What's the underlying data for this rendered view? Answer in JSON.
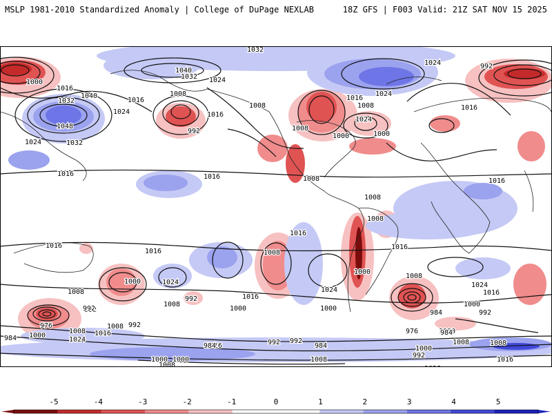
{
  "header": {
    "left": "MSLP 1981-2010 Standardized Anomaly | College of DuPage NEXLAB",
    "right": "18Z GFS | F003 Valid: 21Z SAT NOV 15 2025"
  },
  "colors": {
    "neg5": "#7a0c0c",
    "neg4": "#c42a2a",
    "neg3": "#e05353",
    "neg2": "#f08c8c",
    "neg1": "#f7c1c1",
    "zero": "#ffffff",
    "pos1": "#c5c9f5",
    "pos2": "#9ba2ee",
    "pos3": "#6e75e6",
    "pos4": "#4148da",
    "pos5": "#1a1fbd",
    "contour": "#111111",
    "coast": "#222222"
  },
  "isobar_labels": [
    {
      "id": "l1",
      "text": "1032"
    },
    {
      "id": "l2",
      "text": "1024"
    },
    {
      "id": "l3",
      "text": "992"
    },
    {
      "id": "l4",
      "text": "1000"
    },
    {
      "id": "l5",
      "text": "1016"
    },
    {
      "id": "l6",
      "text": "1032"
    },
    {
      "id": "l7",
      "text": "1040"
    },
    {
      "id": "l8",
      "text": "1048"
    },
    {
      "id": "l9",
      "text": "1024"
    },
    {
      "id": "l10",
      "text": "1032"
    },
    {
      "id": "l11",
      "text": "1024"
    },
    {
      "id": "l12",
      "text": "1016"
    },
    {
      "id": "l13",
      "text": "1016"
    },
    {
      "id": "l14",
      "text": "1040"
    },
    {
      "id": "l15",
      "text": "1032"
    },
    {
      "id": "l16",
      "text": "1008"
    },
    {
      "id": "l17",
      "text": "992"
    },
    {
      "id": "l18",
      "text": "1024"
    },
    {
      "id": "l19",
      "text": "1016"
    },
    {
      "id": "l20",
      "text": "1008"
    },
    {
      "id": "l21",
      "text": "1016"
    },
    {
      "id": "l22",
      "text": "1008"
    },
    {
      "id": "l23",
      "text": "1016"
    },
    {
      "id": "l24",
      "text": "1008"
    },
    {
      "id": "l25",
      "text": "1000"
    },
    {
      "id": "l26",
      "text": "1024"
    },
    {
      "id": "l27",
      "text": "1008"
    },
    {
      "id": "l28",
      "text": "1000"
    },
    {
      "id": "l29",
      "text": "1024"
    },
    {
      "id": "l30",
      "text": "1016"
    },
    {
      "id": "l31",
      "text": "1016"
    },
    {
      "id": "l32",
      "text": "1008"
    },
    {
      "id": "l33",
      "text": "1008"
    },
    {
      "id": "l34",
      "text": "1016"
    },
    {
      "id": "l35",
      "text": "1016"
    },
    {
      "id": "l36",
      "text": "1016"
    },
    {
      "id": "l37",
      "text": "1024"
    },
    {
      "id": "l38",
      "text": "1008"
    },
    {
      "id": "l39",
      "text": "1000"
    },
    {
      "id": "l40",
      "text": "1016"
    },
    {
      "id": "l41",
      "text": "1000"
    },
    {
      "id": "l42",
      "text": "1024"
    },
    {
      "id": "l43",
      "text": "1008"
    },
    {
      "id": "l44",
      "text": "992"
    },
    {
      "id": "l45",
      "text": "1016"
    },
    {
      "id": "l46",
      "text": "1000"
    },
    {
      "id": "l47",
      "text": "1008"
    },
    {
      "id": "l48",
      "text": "992"
    },
    {
      "id": "l49",
      "text": "1000"
    },
    {
      "id": "l50",
      "text": "1024"
    },
    {
      "id": "l51",
      "text": "1016"
    },
    {
      "id": "l52",
      "text": "1008"
    },
    {
      "id": "l53",
      "text": "1000"
    },
    {
      "id": "l54",
      "text": "992"
    },
    {
      "id": "l55",
      "text": "984"
    },
    {
      "id": "l56",
      "text": "976"
    },
    {
      "id": "l57",
      "text": "992"
    },
    {
      "id": "l58",
      "text": "1000"
    },
    {
      "id": "l59",
      "text": "984"
    },
    {
      "id": "l60",
      "text": "1008"
    },
    {
      "id": "l61",
      "text": "1024"
    },
    {
      "id": "l62",
      "text": "976"
    },
    {
      "id": "l63",
      "text": "1000"
    },
    {
      "id": "l64",
      "text": "984"
    },
    {
      "id": "l65",
      "text": "1008"
    },
    {
      "id": "l66",
      "text": "1016"
    },
    {
      "id": "l67",
      "text": "1008"
    },
    {
      "id": "l68",
      "text": "992"
    },
    {
      "id": "l69",
      "text": "1016"
    },
    {
      "id": "l70",
      "text": "1008"
    },
    {
      "id": "l71",
      "text": "984"
    },
    {
      "id": "l72",
      "text": "992"
    },
    {
      "id": "l73",
      "text": "992"
    },
    {
      "id": "l74",
      "text": "984"
    },
    {
      "id": "l75",
      "text": "1000"
    },
    {
      "id": "l76",
      "text": "992"
    },
    {
      "id": "l77",
      "text": "1000"
    },
    {
      "id": "l78",
      "text": "1000"
    },
    {
      "id": "l79",
      "text": "1008"
    },
    {
      "id": "l80",
      "text": "1008"
    },
    {
      "id": "l81",
      "text": "1016"
    },
    {
      "id": "l82",
      "text": "1016"
    }
  ],
  "colorbar": {
    "ticks": [
      "-5",
      "-4",
      "-3",
      "-2",
      "-1",
      "0",
      "1",
      "2",
      "3",
      "4",
      "5"
    ]
  }
}
